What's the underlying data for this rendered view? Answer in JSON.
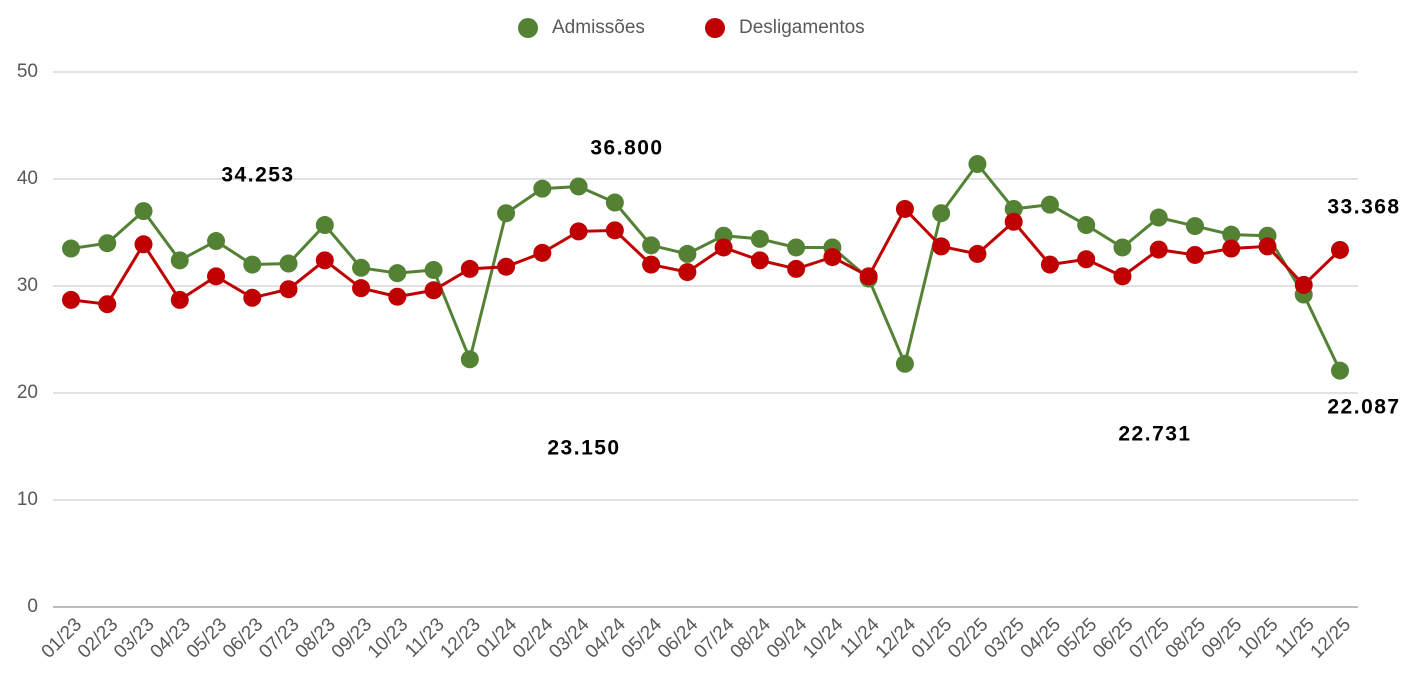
{
  "chart_data": {
    "type": "line",
    "categories": [
      "01/23",
      "02/23",
      "03/23",
      "04/23",
      "05/23",
      "06/23",
      "07/23",
      "08/23",
      "09/23",
      "10/23",
      "11/23",
      "12/23",
      "01/24",
      "02/24",
      "03/24",
      "04/24",
      "05/24",
      "06/24",
      "07/24",
      "08/24",
      "09/24",
      "10/24",
      "11/24",
      "12/24",
      "01/25",
      "02/25",
      "03/25",
      "04/25",
      "05/25",
      "06/25",
      "07/25",
      "08/25",
      "09/25",
      "10/25",
      "11/25",
      "12/25"
    ],
    "series": [
      {
        "name": "Admissões",
        "color": "#548235",
        "values": [
          33.5,
          34.0,
          37.0,
          32.4,
          34.2,
          32.0,
          32.1,
          35.7,
          31.7,
          31.2,
          31.5,
          23.15,
          36.8,
          39.1,
          39.3,
          37.8,
          33.8,
          33.0,
          34.7,
          34.4,
          33.6,
          33.6,
          30.7,
          22.731,
          36.8,
          41.4,
          37.2,
          37.6,
          35.7,
          33.6,
          36.4,
          35.6,
          34.8,
          34.7,
          29.2,
          22.087
        ]
      },
      {
        "name": "Desligamentos",
        "color": "#c00000",
        "values": [
          28.7,
          28.3,
          33.9,
          28.7,
          30.9,
          28.9,
          29.7,
          32.4,
          29.8,
          29.0,
          29.6,
          31.6,
          31.8,
          33.1,
          35.1,
          35.2,
          32.0,
          31.3,
          33.6,
          32.4,
          31.6,
          32.7,
          30.9,
          37.2,
          33.7,
          33.0,
          36.0,
          32.0,
          32.5,
          30.9,
          33.4,
          32.9,
          33.5,
          33.7,
          30.1,
          33.368
        ]
      }
    ],
    "annotations": [
      "34.253",
      "36.800",
      "23.150",
      "22.731",
      "33.368",
      "22.087"
    ],
    "ylim": [
      0,
      50
    ],
    "yticks": [
      0,
      10,
      20,
      30,
      40,
      50
    ],
    "grid": true,
    "legend": "top"
  }
}
